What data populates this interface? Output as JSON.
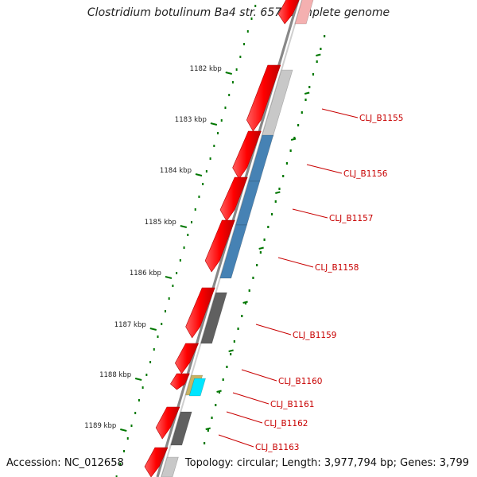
{
  "title": "Clostridium botulinum Ba4 str. 657, complete genome",
  "footer": {
    "accession": "Accession: NC_012658",
    "summary": "Topology: circular; Length: 3,977,794 bp; Genes: 3,799"
  },
  "scale_ticks": [
    {
      "label": "1182 kbp",
      "kbp": 1182
    },
    {
      "label": "1183 kbp",
      "kbp": 1183
    },
    {
      "label": "1184 kbp",
      "kbp": 1184
    },
    {
      "label": "1185 kbp",
      "kbp": 1185
    },
    {
      "label": "1186 kbp",
      "kbp": 1186
    },
    {
      "label": "1187 kbp",
      "kbp": 1187
    },
    {
      "label": "1188 kbp",
      "kbp": 1188
    },
    {
      "label": "1189 kbp",
      "kbp": 1189
    }
  ],
  "gene_labels": [
    "CLJ_B1155",
    "CLJ_B1156",
    "CLJ_B1157",
    "CLJ_B1158",
    "CLJ_B1159",
    "CLJ_B1160",
    "CLJ_B1161",
    "CLJ_B1162",
    "CLJ_B1163"
  ],
  "colors": {
    "cds": "#ff0000",
    "feature_gray_light": "#c8c8c8",
    "feature_blue": "#4682b4",
    "feature_gray_dark": "#606060",
    "feature_tan": "#c8b464",
    "feature_cyan": "#00e5ff",
    "gc_ticks": "#007700",
    "backbone": "#777777",
    "label": "#c80000"
  }
}
